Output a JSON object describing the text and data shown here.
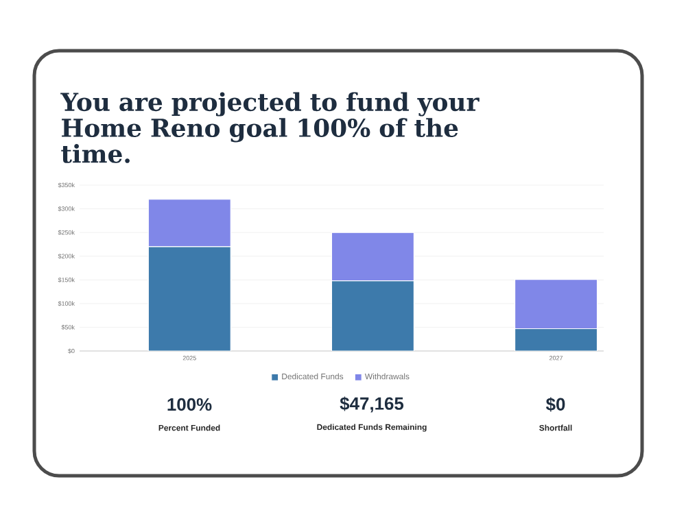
{
  "chart_data": {
    "type": "bar",
    "stacked": true,
    "title": "You are projected to fund your Home Reno goal 100% of the time.",
    "categories": [
      "2025",
      null,
      "2027"
    ],
    "series": [
      {
        "name": "Dedicated Funds",
        "color": "#3d7aab",
        "values": [
          220000,
          148000,
          47000
        ]
      },
      {
        "name": "Withdrawals",
        "color": "#8087e8",
        "values": [
          100000,
          102000,
          104000
        ]
      }
    ],
    "ylim": [
      0,
      350000
    ],
    "yticks": [
      {
        "value": 0,
        "label": "$0"
      },
      {
        "value": 50000,
        "label": "$50k"
      },
      {
        "value": 100000,
        "label": "$100k"
      },
      {
        "value": 150000,
        "label": "$150k"
      },
      {
        "value": 200000,
        "label": "$200k"
      },
      {
        "value": 250000,
        "label": "$250k"
      },
      {
        "value": 300000,
        "label": "$300k"
      },
      {
        "value": 350000,
        "label": "$350k"
      }
    ],
    "grid": "y",
    "legend": "bottom",
    "annotations": [
      "100%",
      "Percent Funded",
      "$47,165",
      "Dedicated Funds Remaining",
      "$0",
      "Shortfall"
    ]
  }
}
